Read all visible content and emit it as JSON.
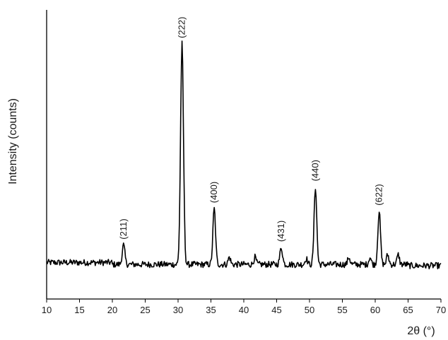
{
  "chart_data": {
    "type": "line",
    "title": "",
    "xlabel": "2θ (°)",
    "ylabel": "Intensity (counts)",
    "xlim": [
      10,
      70
    ],
    "x_ticks": [
      10,
      15,
      20,
      25,
      30,
      35,
      40,
      45,
      50,
      55,
      60,
      65,
      70
    ],
    "y_ticks_shown": false,
    "grid": false,
    "legend": "none",
    "baseline_intensity": 9,
    "ylim": [
      0,
      100
    ],
    "peaks": [
      {
        "x": 21.7,
        "y": 17,
        "label": "(211)"
      },
      {
        "x": 30.6,
        "y": 100,
        "label": "(222)"
      },
      {
        "x": 35.5,
        "y": 32,
        "label": "(400)"
      },
      {
        "x": 45.7,
        "y": 16,
        "label": "(431)"
      },
      {
        "x": 50.9,
        "y": 41,
        "label": "(440)"
      },
      {
        "x": 60.6,
        "y": 31,
        "label": "(622)"
      }
    ],
    "minor_peaks": [
      {
        "x": 37.8,
        "y": 12
      },
      {
        "x": 41.7,
        "y": 12
      },
      {
        "x": 49.5,
        "y": 11.5
      },
      {
        "x": 56.0,
        "y": 12
      },
      {
        "x": 59.2,
        "y": 12
      },
      {
        "x": 61.9,
        "y": 13
      },
      {
        "x": 63.5,
        "y": 13
      }
    ]
  }
}
